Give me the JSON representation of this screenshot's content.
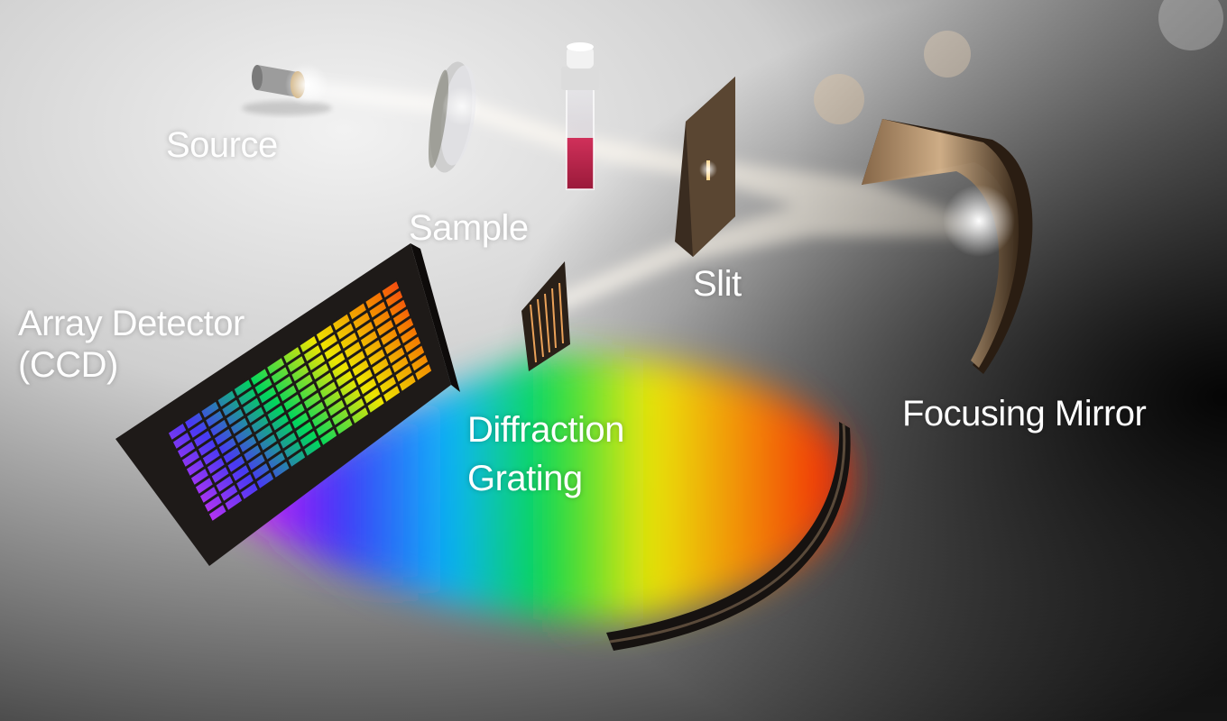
{
  "labels": {
    "source": "Source",
    "sample": "Sample",
    "slit": "Slit",
    "focusing_mirror": "Focusing Mirror",
    "array_detector_line1": "Array Detector",
    "array_detector_line2": "(CCD)",
    "diffraction_grating_line1": "Diffraction",
    "diffraction_grating_line2": "Grating"
  },
  "colors": {
    "label_text": "#ffffff",
    "spectrum": [
      "#ff0000",
      "#ff8000",
      "#ffff00",
      "#00ff00",
      "#00bfff",
      "#2020ff",
      "#ff00ff"
    ]
  }
}
